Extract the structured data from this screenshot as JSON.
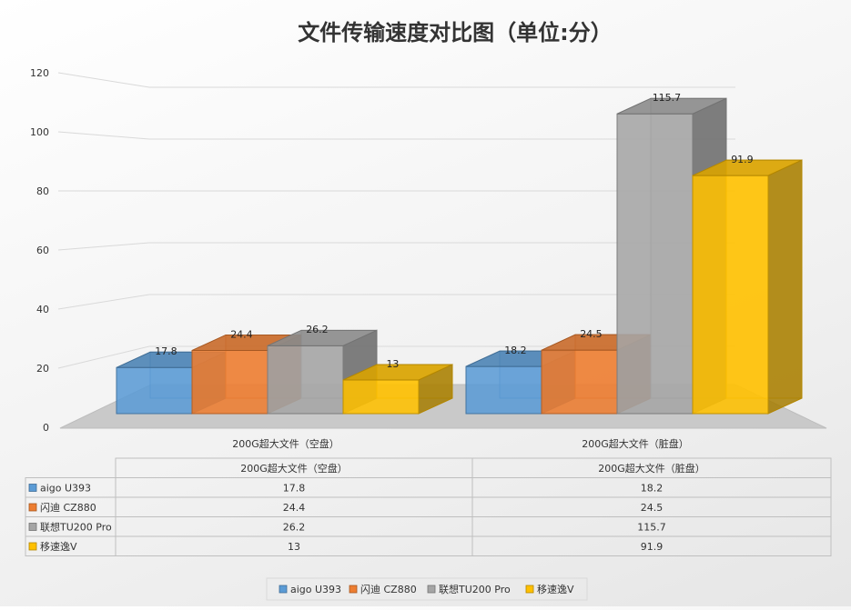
{
  "chart_data": {
    "type": "bar",
    "title": "文件传输速度对比图（单位:分）",
    "categories": [
      "200G超大文件（空盘）",
      "200G超大文件（脏盘）"
    ],
    "ylim": [
      0,
      120
    ],
    "yticks": [
      0,
      20,
      40,
      60,
      80,
      100,
      120
    ],
    "grid": true,
    "legend_position": "bottom",
    "data_table": true,
    "series": [
      {
        "name": "aigo U393",
        "values": [
          17.8,
          18.2
        ],
        "color": "#5b9bd5"
      },
      {
        "name": "闪迪 CZ880",
        "values": [
          24.4,
          24.5
        ],
        "color": "#ed7d31"
      },
      {
        "name": "联想TU200 Pro",
        "values": [
          26.2,
          115.7
        ],
        "color": "#a5a5a5"
      },
      {
        "name": "移速逸V",
        "values": [
          13,
          91.9
        ],
        "color": "#ffc000"
      }
    ]
  }
}
